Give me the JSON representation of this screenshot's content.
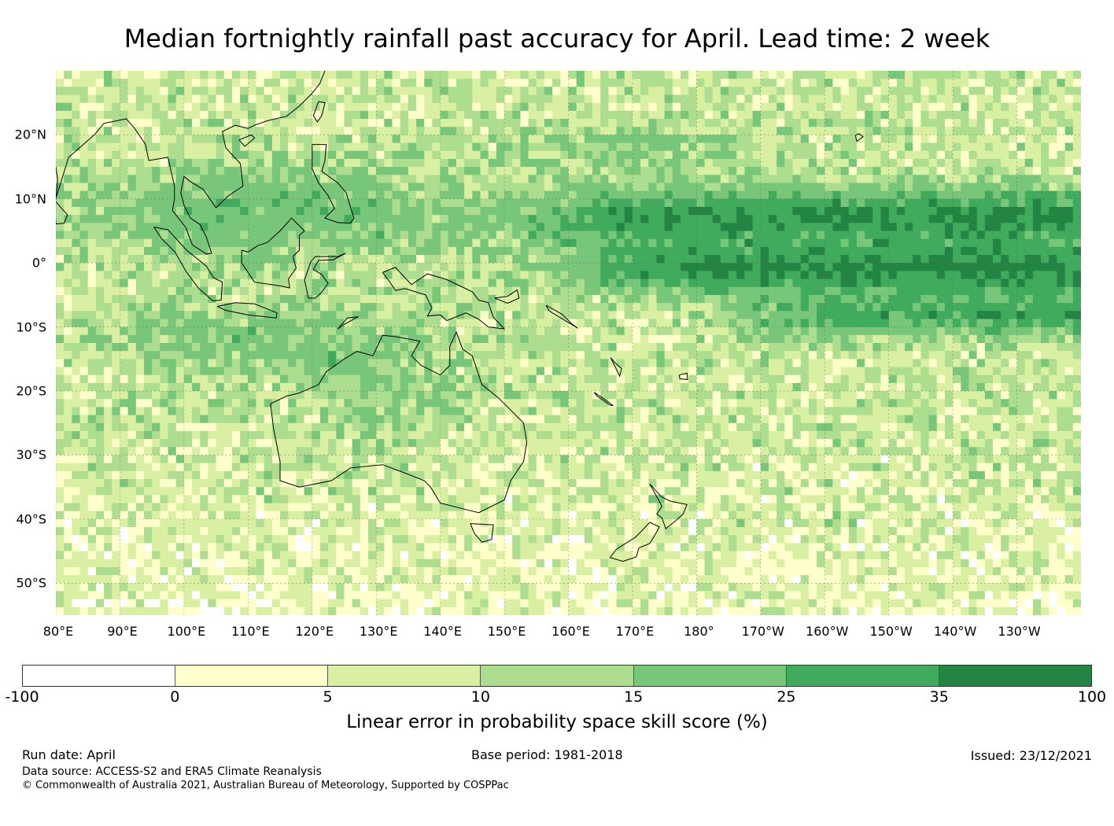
{
  "title": "Median fortnightly rainfall past accuracy for April. Lead time: 2 week",
  "map": {
    "lon_range": [
      80,
      240
    ],
    "lat_range": [
      -55,
      30
    ],
    "lat_labels": [
      {
        "lat": 20,
        "text": "20°N"
      },
      {
        "lat": 10,
        "text": "10°N"
      },
      {
        "lat": 0,
        "text": "0°"
      },
      {
        "lat": -10,
        "text": "10°S"
      },
      {
        "lat": -20,
        "text": "20°S"
      },
      {
        "lat": -30,
        "text": "30°S"
      },
      {
        "lat": -40,
        "text": "40°S"
      },
      {
        "lat": -50,
        "text": "50°S"
      }
    ],
    "lon_labels": [
      {
        "lon": 80,
        "text": "80°E"
      },
      {
        "lon": 90,
        "text": "90°E"
      },
      {
        "lon": 100,
        "text": "100°E"
      },
      {
        "lon": 110,
        "text": "110°E"
      },
      {
        "lon": 120,
        "text": "120°E"
      },
      {
        "lon": 130,
        "text": "130°E"
      },
      {
        "lon": 140,
        "text": "140°E"
      },
      {
        "lon": 150,
        "text": "150°E"
      },
      {
        "lon": 160,
        "text": "160°E"
      },
      {
        "lon": 170,
        "text": "170°E"
      },
      {
        "lon": 180,
        "text": "180°"
      },
      {
        "lon": 190,
        "text": "170°W"
      },
      {
        "lon": 200,
        "text": "160°W"
      },
      {
        "lon": 210,
        "text": "150°W"
      },
      {
        "lon": 220,
        "text": "140°W"
      },
      {
        "lon": 230,
        "text": "130°W"
      }
    ]
  },
  "colorbar": {
    "colors": [
      "#ffffff",
      "#ffffcc",
      "#d9f0a3",
      "#addd8e",
      "#78c679",
      "#41ab5d",
      "#238443"
    ],
    "ticks": [
      "-100",
      "0",
      "5",
      "10",
      "15",
      "25",
      "35",
      "100"
    ],
    "label": "Linear error in probability space skill score (%)"
  },
  "footer": {
    "run_date": "Run date: April",
    "base_period": "Base period: 1981-2018",
    "issued": "Issued: 23/12/2021",
    "data_source": "Data source: ACCESS-S2 and ERA5 Climate Reanalysis",
    "copyright": "© Commonwealth of Australia 2021, Australian Bureau of Meteorology, Supported by COSPPac"
  }
}
